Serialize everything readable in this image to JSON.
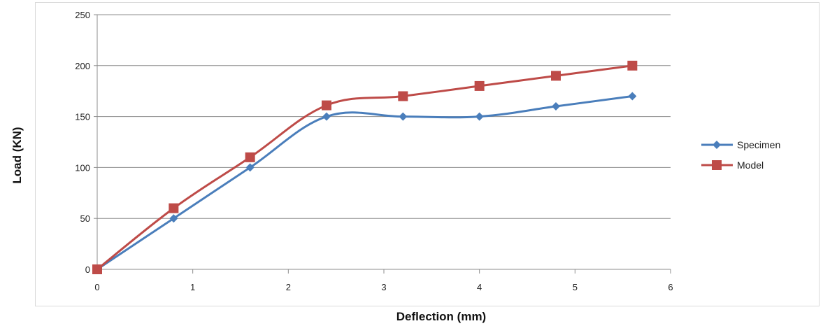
{
  "chart_data": {
    "type": "line",
    "title": "",
    "xlabel": "Deflection (mm)",
    "ylabel": "Load (KN)",
    "xlim": [
      0,
      6
    ],
    "ylim": [
      0,
      250
    ],
    "xticks": [
      "0",
      "1",
      "2",
      "3",
      "4",
      "5",
      "6"
    ],
    "yticks": [
      "0",
      "50",
      "100",
      "150",
      "200",
      "250"
    ],
    "grid": "horizontal",
    "legend_position": "right",
    "series": [
      {
        "name": "Specimen",
        "color": "#4a7ebb",
        "marker": "diamond",
        "x": [
          0,
          0.8,
          1.6,
          2.4,
          3.2,
          4.0,
          4.8,
          5.6
        ],
        "y": [
          0,
          50,
          100,
          150,
          150,
          150,
          160,
          170
        ]
      },
      {
        "name": "Model",
        "color": "#be4b48",
        "marker": "square",
        "x": [
          0,
          0.8,
          1.6,
          2.4,
          3.2,
          4.0,
          4.8,
          5.6
        ],
        "y": [
          0,
          60,
          110,
          161,
          170,
          180,
          190,
          200
        ]
      }
    ]
  }
}
